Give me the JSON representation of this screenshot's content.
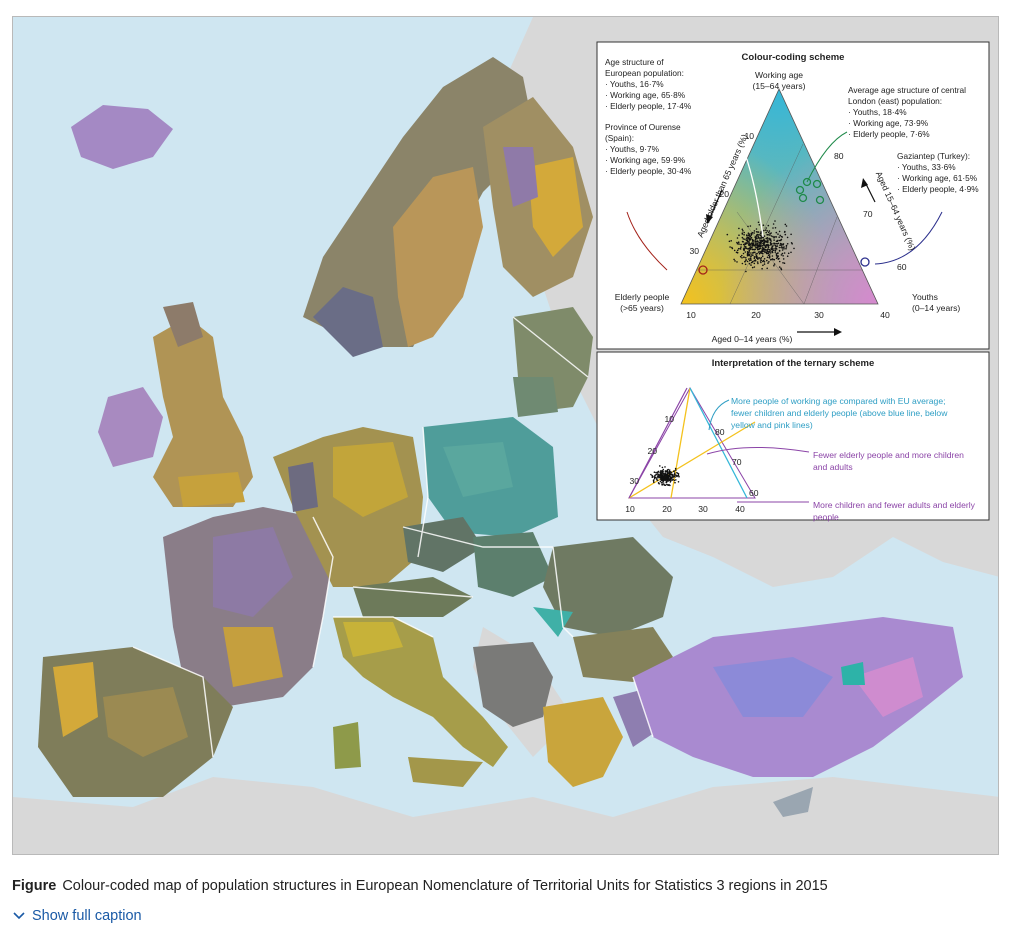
{
  "figure": {
    "caption_label": "Figure",
    "caption_text": "Colour-coded map of population structures in European Nomenclature of Territorial Units for Statistics 3 regions in 2015",
    "show_caption": "Show full caption"
  },
  "legend": {
    "title": "Colour-coding scheme",
    "top_vertex": [
      "Working age",
      "(15–64 years)"
    ],
    "left_vertex": [
      "Elderly people",
      "(>65 years)"
    ],
    "right_vertex": [
      "Youths",
      "(0–14 years)"
    ],
    "axis_left": "Aged older than 65 years (%)",
    "axis_right": "Aged 15–64 years (%)",
    "axis_bottom": "Aged 0–14 years (%)",
    "ticks_left": [
      "10",
      "20",
      "30"
    ],
    "ticks_right": [
      "80",
      "70",
      "60"
    ],
    "ticks_bottom": [
      "10",
      "20",
      "30",
      "40"
    ],
    "europe": [
      "Age structure of",
      "European population:",
      "· Youths, 16·7%",
      "· Working age, 65·8%",
      "· Elderly people, 17·4%"
    ],
    "ourense": [
      "Province of Ourense",
      "(Spain):",
      "· Youths, 9·7%",
      "· Working age, 59·9%",
      "· Elderly people, 30·4%"
    ],
    "london": [
      "Average age structure of central",
      "London (east) population:",
      "· Youths, 18·4%",
      "· Working age, 73·9%",
      "· Elderly people, 7·6%"
    ],
    "gaziantep": [
      "Gaziantep (Turkey):",
      "· Youths, 33·6%",
      "· Working age, 61·5%",
      "· Elderly people, 4·9%"
    ]
  },
  "interpretation": {
    "title": "Interpretation of the ternary scheme",
    "note_blue": [
      "More people of working age compared with EU average;",
      "fewer children and elderly people (above blue line, below",
      "yellow and pink lines)"
    ],
    "note_purple1": [
      "Fewer elderly people and more children",
      "and adults"
    ],
    "note_purple2": [
      "More children and fewer adults and elderly",
      "people"
    ],
    "ticks_left": [
      "10",
      "20",
      "30"
    ],
    "ticks_right": [
      "80",
      "70",
      "60"
    ],
    "ticks_bottom": [
      "10",
      "20",
      "30",
      "40"
    ]
  },
  "colors": {
    "sea": "#cfe6f1",
    "non_eu_land": "#d9d9d9",
    "working_age": "#35b7d8",
    "elderly": "#f4c21d",
    "youths": "#d689cf",
    "annotation_blue": "#2e9ec4",
    "annotation_purple": "#8b44a7",
    "ourense_circle": "#a32119",
    "gaziantep_circle": "#2b2f8c",
    "london_circle": "#1f8a4a"
  }
}
